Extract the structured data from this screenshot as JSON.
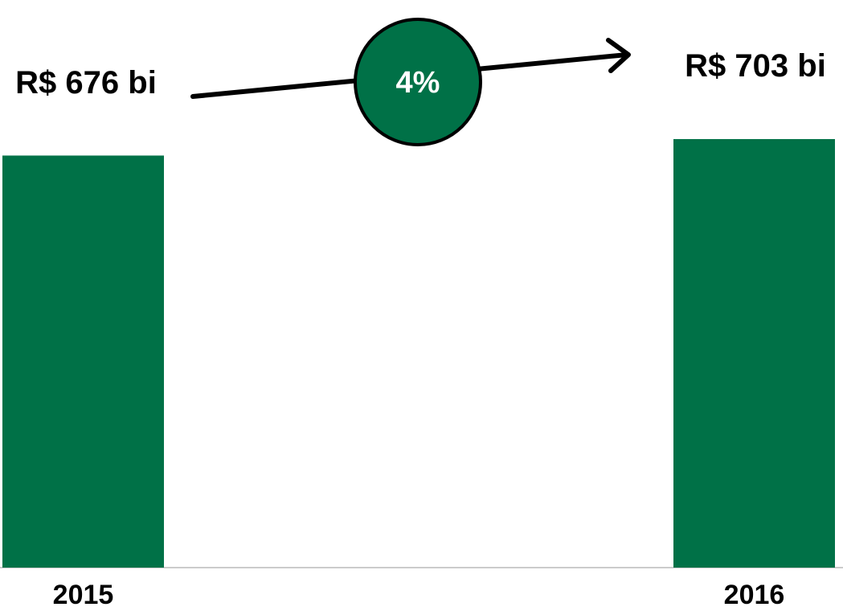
{
  "chart_data": {
    "type": "bar",
    "categories": [
      "2015",
      "2016"
    ],
    "values": [
      676,
      703
    ],
    "data_labels": [
      "R$ 676 bi",
      "R$ 703 bi"
    ],
    "growth_label": "4%",
    "title": "",
    "xlabel": "",
    "ylabel": "",
    "ylim": [
      0,
      703
    ],
    "grid": false,
    "legend": "none"
  },
  "colors": {
    "bar": "#007147",
    "badge": "#007147",
    "arrow": "#000000",
    "axis": "#cccccc"
  },
  "icons": {
    "arrow": "growth-arrow-icon"
  }
}
